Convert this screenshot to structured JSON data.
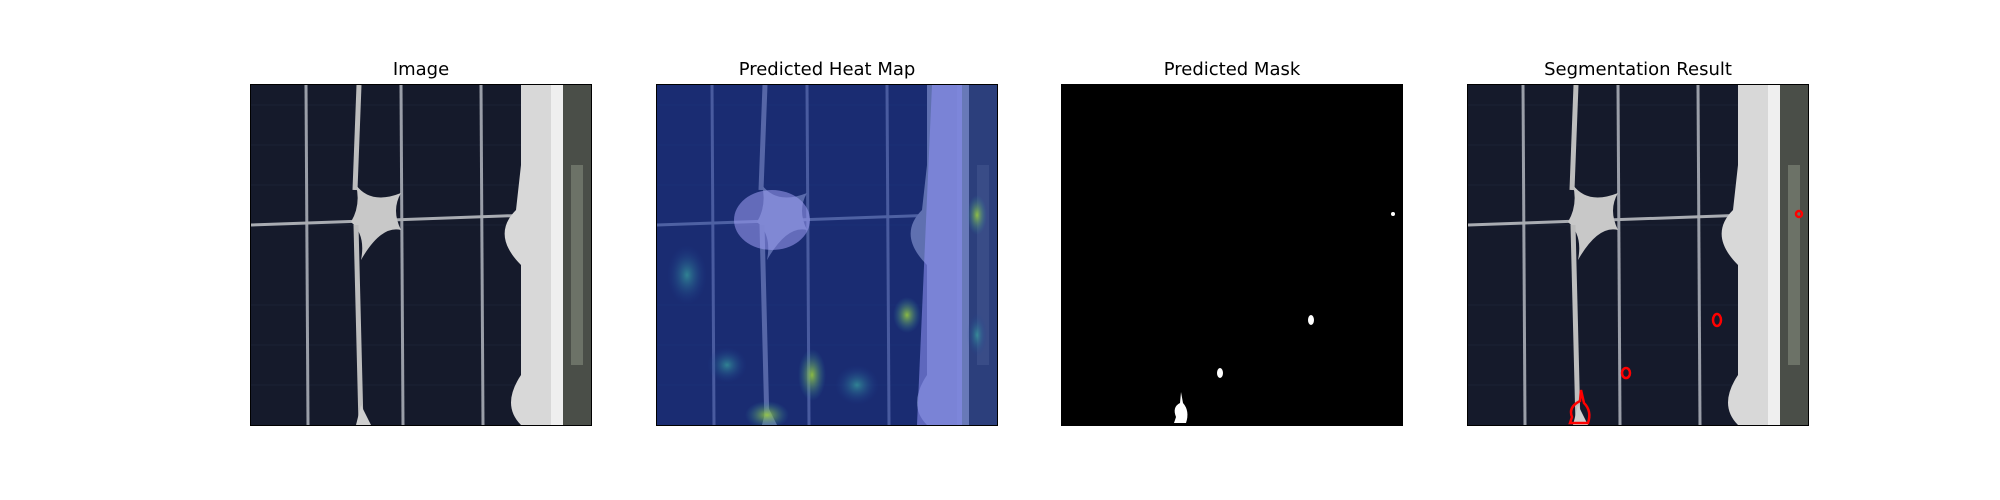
{
  "figure": {
    "panels": [
      {
        "id": "image",
        "title": "Image"
      },
      {
        "id": "heatmap",
        "title": "Predicted Heat Map"
      },
      {
        "id": "mask",
        "title": "Predicted Mask"
      },
      {
        "id": "segmentation",
        "title": "Segmentation Result"
      }
    ]
  },
  "colors": {
    "cell": "#151a2b",
    "busbar": "#c8c8c8",
    "heat_base": "#1a2e8a",
    "mask_bg": "#000000",
    "mask_fg": "#ffffff",
    "contour": "#ff0000"
  }
}
